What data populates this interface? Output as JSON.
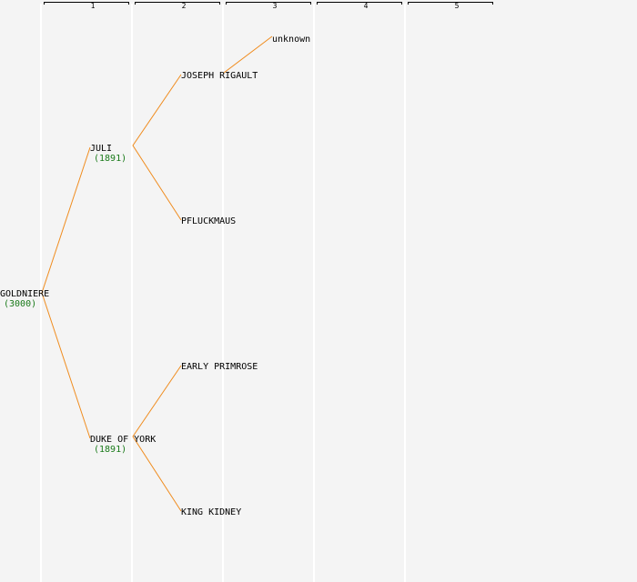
{
  "columns": [
    "1",
    "2",
    "3",
    "4",
    "5"
  ],
  "nodes": [
    {
      "label": "GOLDNIERE",
      "year": "(3000)"
    },
    {
      "label": "JULI",
      "year": "(1891)"
    },
    {
      "label": "DUKE OF YORK",
      "year": "(1891)"
    },
    {
      "label": "JOSEPH RIGAULT"
    },
    {
      "label": "PFLUCKMAUS"
    },
    {
      "label": "EARLY PRIMROSE"
    },
    {
      "label": "KING KIDNEY"
    },
    {
      "label": "unknown"
    }
  ]
}
